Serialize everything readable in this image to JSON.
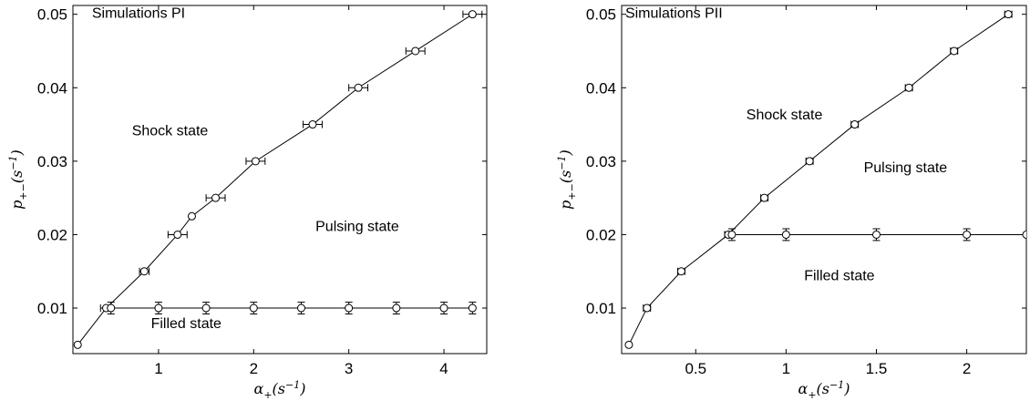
{
  "chart_data": [
    {
      "type": "line",
      "title": "Simulations PI",
      "xlabel": "α+(s−1)",
      "ylabel": "p+−(s−1)",
      "xlim": [
        0.1,
        4.45
      ],
      "ylim": [
        0.0038,
        0.0512
      ],
      "xticks": [
        1,
        2,
        3,
        4
      ],
      "yticks": [
        0.01,
        0.02,
        0.03,
        0.04,
        0.05
      ],
      "xtick_labels": [
        "1",
        "2",
        "3",
        "4"
      ],
      "ytick_labels": [
        "0.01",
        "0.02",
        "0.03",
        "0.04",
        "0.05"
      ],
      "grid": false,
      "annotations": [
        {
          "text": "Simulations PI",
          "x": 0.3,
          "y": 0.0495
        },
        {
          "text": "Shock state",
          "x": 0.72,
          "y": 0.0335
        },
        {
          "text": "Pulsing state",
          "x": 2.65,
          "y": 0.0205
        },
        {
          "text": "Filled state",
          "x": 0.92,
          "y": 0.0073
        }
      ],
      "series": [
        {
          "marker": "circle",
          "x": [
            0.15,
            0.45,
            0.85,
            1.2,
            1.35,
            1.6,
            2.02,
            2.62,
            3.1,
            3.7,
            4.3
          ],
          "y": [
            0.005,
            0.01,
            0.015,
            0.02,
            0.0225,
            0.025,
            0.03,
            0.035,
            0.04,
            0.045,
            0.05
          ],
          "x_error": [
            0,
            0.06,
            0.05,
            0.1,
            0,
            0.1,
            0.1,
            0.1,
            0.1,
            0.1,
            0.1
          ]
        },
        {
          "marker": "circle",
          "x": [
            0.5,
            1.0,
            1.5,
            2.0,
            2.5,
            3.0,
            3.5,
            4.0,
            4.3
          ],
          "y": [
            0.01,
            0.01,
            0.01,
            0.01,
            0.01,
            0.01,
            0.01,
            0.01,
            0.01
          ],
          "y_error": [
            0.0008,
            0.0008,
            0.0008,
            0.0008,
            0.0008,
            0.0008,
            0.0008,
            0.0008,
            0.0008
          ]
        }
      ]
    },
    {
      "type": "line",
      "title": "Simulations PII",
      "xlabel": "α+(s−1)",
      "ylabel": "p+−(s−1)",
      "xlim": [
        0.09,
        2.33
      ],
      "ylim": [
        0.0038,
        0.0512
      ],
      "xticks": [
        0.5,
        1,
        1.5,
        2
      ],
      "yticks": [
        0.01,
        0.02,
        0.03,
        0.04,
        0.05
      ],
      "xtick_labels": [
        "0.5",
        "1",
        "1.5",
        "2"
      ],
      "ytick_labels": [
        "0.01",
        "0.02",
        "0.03",
        "0.04",
        "0.05"
      ],
      "grid": false,
      "annotations": [
        {
          "text": "Simulations PII",
          "x": 0.11,
          "y": 0.0495
        },
        {
          "text": "Shock state",
          "x": 0.78,
          "y": 0.0357
        },
        {
          "text": "Pulsing state",
          "x": 1.43,
          "y": 0.0285
        },
        {
          "text": "Filled state",
          "x": 1.1,
          "y": 0.0138
        }
      ],
      "series": [
        {
          "marker": "circle",
          "x": [
            0.13,
            0.23,
            0.42,
            0.68,
            0.88,
            1.13,
            1.38,
            1.68,
            1.93,
            2.23
          ],
          "y": [
            0.005,
            0.01,
            0.015,
            0.02,
            0.025,
            0.03,
            0.035,
            0.04,
            0.045,
            0.05
          ],
          "x_error": [
            0,
            0.02,
            0.02,
            0.02,
            0.02,
            0.02,
            0.02,
            0.02,
            0.02,
            0.02
          ]
        },
        {
          "marker": "circle",
          "x": [
            0.7,
            1.0,
            1.5,
            2.0,
            2.33
          ],
          "y": [
            0.02,
            0.02,
            0.02,
            0.02,
            0.02
          ],
          "y_error": [
            0.0008,
            0.0008,
            0.0008,
            0.0008,
            0
          ]
        }
      ]
    }
  ]
}
